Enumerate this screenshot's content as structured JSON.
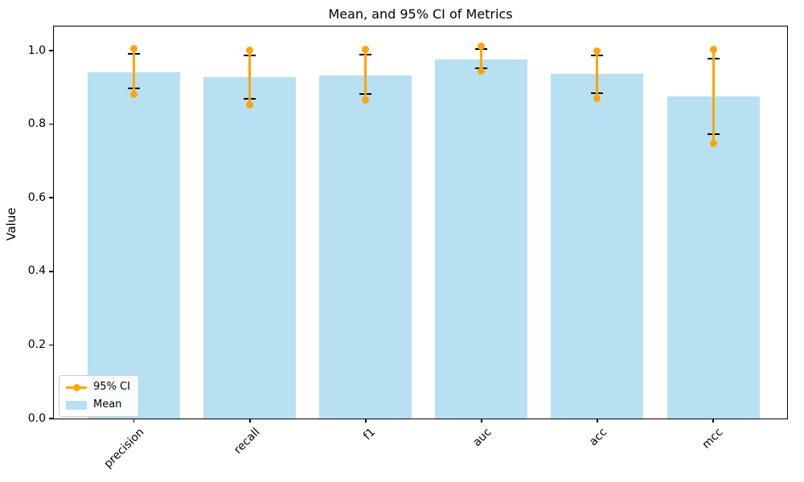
{
  "figure": {
    "title": "Mean, and 95% CI of Metrics",
    "ylabel": "Value"
  },
  "legend": {
    "ci_label": "95% CI",
    "mean_label": "Mean"
  },
  "colors": {
    "bar": "#b7e1f3",
    "ci": "#ffa500",
    "cap": "#000000",
    "axis": "#000000",
    "text": "#000000"
  },
  "chart_data": {
    "type": "bar",
    "title": "Mean, and 95% CI of Metrics",
    "xlabel": "",
    "ylabel": "Value",
    "categories": [
      "precision",
      "recall",
      "f1",
      "auc",
      "acc",
      "mcc"
    ],
    "series": [
      {
        "name": "Mean",
        "values": [
          0.941,
          0.929,
          0.933,
          0.977,
          0.936,
          0.875
        ]
      },
      {
        "name": "95% CI low",
        "values": [
          0.881,
          0.853,
          0.866,
          0.944,
          0.871,
          0.748
        ]
      },
      {
        "name": "95% CI high",
        "values": [
          1.006,
          1.001,
          1.004,
          1.011,
          0.999,
          1.004
        ]
      },
      {
        "name": "cap low",
        "values": [
          0.897,
          0.87,
          0.882,
          0.952,
          0.885,
          0.774
        ]
      },
      {
        "name": "cap high",
        "values": [
          0.992,
          0.986,
          0.988,
          1.004,
          0.986,
          0.978
        ]
      }
    ],
    "yticks": [
      0.0,
      0.2,
      0.4,
      0.6,
      0.8,
      1.0
    ],
    "ytick_labels": [
      "0.0",
      "0.2",
      "0.4",
      "0.6",
      "0.8",
      "1.0"
    ],
    "ylim": [
      0,
      1.0655
    ],
    "grid": false,
    "legend_position": "lower left",
    "bar_color_name": "light blue",
    "ci_color_name": "orange"
  }
}
